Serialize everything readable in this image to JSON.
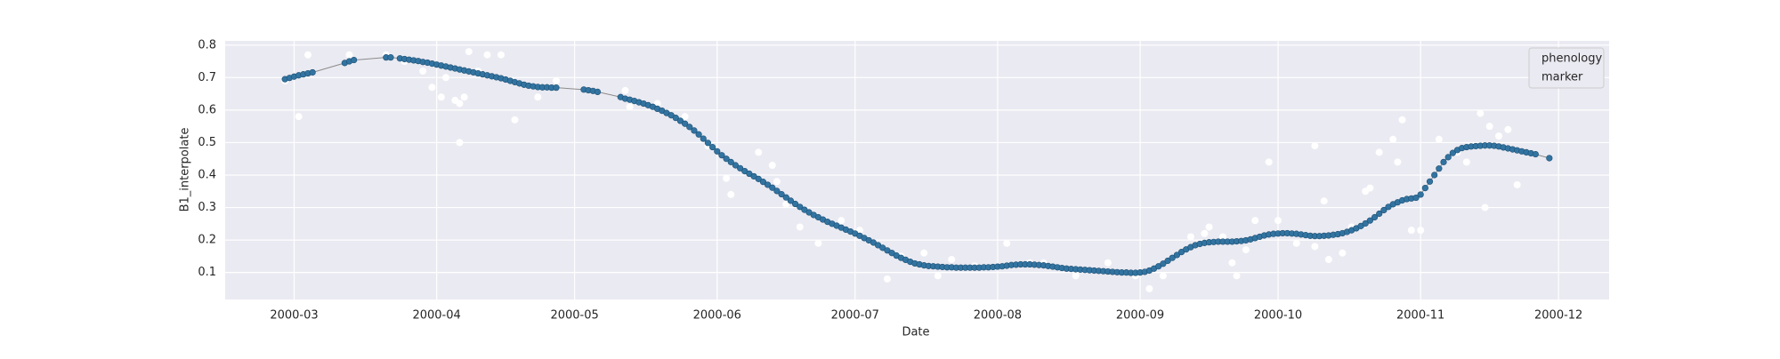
{
  "chart_data": {
    "type": "line",
    "x_label": "Date",
    "y_label": "B1_interpolate",
    "legend_title": "phenology",
    "legend": "upper right",
    "xlim": [
      45,
      346
    ],
    "ylim": [
      0.017,
      0.813
    ],
    "xticks": [
      {
        "value": 60,
        "label": "2000-03"
      },
      {
        "value": 91,
        "label": "2000-04"
      },
      {
        "value": 121,
        "label": "2000-05"
      },
      {
        "value": 152,
        "label": "2000-06"
      },
      {
        "value": 182,
        "label": "2000-07"
      },
      {
        "value": 213,
        "label": "2000-08"
      },
      {
        "value": 244,
        "label": "2000-09"
      },
      {
        "value": 274,
        "label": "2000-10"
      },
      {
        "value": 305,
        "label": "2000-11"
      },
      {
        "value": 335,
        "label": "2000-12"
      }
    ],
    "yticks": [
      0.1,
      0.2,
      0.3,
      0.4,
      0.5,
      0.6,
      0.7,
      0.8
    ],
    "grid": true,
    "series": [
      {
        "name": "marker",
        "color": "#3274a1",
        "line_color": "#8c8c8c",
        "x": [
          58,
          59,
          60,
          61,
          62,
          63,
          64,
          71,
          72,
          73,
          80,
          81,
          83,
          84,
          85,
          86,
          87,
          88,
          89,
          90,
          91,
          92,
          93,
          94,
          95,
          96,
          97,
          98,
          99,
          100,
          101,
          102,
          103,
          104,
          105,
          106,
          107,
          108,
          109,
          110,
          111,
          112,
          113,
          114,
          115,
          116,
          117,
          123,
          124,
          125,
          126,
          131,
          132,
          133,
          134,
          135,
          136,
          137,
          138,
          139,
          140,
          141,
          142,
          143,
          144,
          145,
          146,
          147,
          148,
          149,
          150,
          151,
          152,
          153,
          154,
          155,
          156,
          157,
          158,
          159,
          160,
          161,
          162,
          163,
          164,
          165,
          166,
          167,
          168,
          169,
          170,
          171,
          172,
          173,
          174,
          175,
          176,
          177,
          178,
          179,
          180,
          181,
          182,
          183,
          184,
          185,
          186,
          187,
          188,
          189,
          190,
          191,
          192,
          193,
          194,
          195,
          196,
          197,
          198,
          199,
          200,
          201,
          202,
          203,
          204,
          205,
          206,
          207,
          208,
          209,
          210,
          211,
          212,
          213,
          214,
          215,
          216,
          217,
          218,
          219,
          220,
          221,
          222,
          223,
          224,
          225,
          226,
          227,
          228,
          229,
          230,
          231,
          232,
          233,
          234,
          235,
          236,
          237,
          238,
          239,
          240,
          241,
          242,
          243,
          244,
          245,
          246,
          247,
          248,
          249,
          250,
          251,
          252,
          253,
          254,
          255,
          256,
          257,
          258,
          259,
          260,
          261,
          262,
          263,
          264,
          265,
          266,
          267,
          268,
          269,
          270,
          271,
          272,
          273,
          274,
          275,
          276,
          277,
          278,
          279,
          280,
          281,
          282,
          283,
          284,
          285,
          286,
          287,
          288,
          289,
          290,
          291,
          292,
          293,
          294,
          295,
          296,
          297,
          298,
          299,
          300,
          301,
          302,
          303,
          304,
          305,
          306,
          307,
          308,
          309,
          310,
          311,
          312,
          313,
          314,
          315,
          316,
          317,
          318,
          319,
          320,
          321,
          322,
          323,
          324,
          325,
          326,
          327,
          328,
          329,
          330,
          333
        ],
        "values": [
          0.695,
          0.699,
          0.703,
          0.707,
          0.71,
          0.713,
          0.716,
          0.745,
          0.75,
          0.754,
          0.762,
          0.762,
          0.759,
          0.757,
          0.755,
          0.753,
          0.751,
          0.748,
          0.746,
          0.743,
          0.74,
          0.737,
          0.734,
          0.731,
          0.728,
          0.725,
          0.722,
          0.719,
          0.716,
          0.713,
          0.71,
          0.707,
          0.704,
          0.701,
          0.698,
          0.694,
          0.69,
          0.686,
          0.682,
          0.678,
          0.675,
          0.673,
          0.671,
          0.67,
          0.67,
          0.669,
          0.669,
          0.663,
          0.661,
          0.659,
          0.656,
          0.64,
          0.635,
          0.632,
          0.628,
          0.624,
          0.62,
          0.615,
          0.61,
          0.604,
          0.598,
          0.591,
          0.584,
          0.576,
          0.567,
          0.558,
          0.548,
          0.537,
          0.525,
          0.512,
          0.499,
          0.486,
          0.473,
          0.461,
          0.45,
          0.44,
          0.43,
          0.421,
          0.412,
          0.404,
          0.396,
          0.388,
          0.379,
          0.37,
          0.361,
          0.351,
          0.341,
          0.331,
          0.321,
          0.311,
          0.302,
          0.293,
          0.285,
          0.277,
          0.27,
          0.263,
          0.256,
          0.25,
          0.244,
          0.238,
          0.232,
          0.226,
          0.22,
          0.213,
          0.206,
          0.199,
          0.192,
          0.184,
          0.176,
          0.168,
          0.16,
          0.152,
          0.145,
          0.139,
          0.133,
          0.128,
          0.125,
          0.122,
          0.12,
          0.119,
          0.118,
          0.117,
          0.116,
          0.116,
          0.115,
          0.115,
          0.115,
          0.115,
          0.115,
          0.115,
          0.116,
          0.116,
          0.117,
          0.118,
          0.119,
          0.121,
          0.123,
          0.124,
          0.125,
          0.125,
          0.125,
          0.124,
          0.123,
          0.122,
          0.12,
          0.118,
          0.116,
          0.114,
          0.112,
          0.111,
          0.11,
          0.109,
          0.108,
          0.107,
          0.106,
          0.105,
          0.104,
          0.103,
          0.102,
          0.101,
          0.1,
          0.1,
          0.099,
          0.099,
          0.1,
          0.102,
          0.106,
          0.112,
          0.119,
          0.127,
          0.136,
          0.145,
          0.154,
          0.163,
          0.171,
          0.178,
          0.184,
          0.188,
          0.191,
          0.193,
          0.194,
          0.195,
          0.195,
          0.195,
          0.195,
          0.196,
          0.197,
          0.199,
          0.202,
          0.206,
          0.21,
          0.214,
          0.217,
          0.219,
          0.22,
          0.221,
          0.221,
          0.22,
          0.219,
          0.217,
          0.215,
          0.213,
          0.212,
          0.212,
          0.213,
          0.214,
          0.216,
          0.218,
          0.221,
          0.225,
          0.23,
          0.236,
          0.243,
          0.251,
          0.26,
          0.27,
          0.281,
          0.292,
          0.302,
          0.31,
          0.316,
          0.322,
          0.326,
          0.328,
          0.33,
          0.34,
          0.36,
          0.38,
          0.4,
          0.42,
          0.44,
          0.455,
          0.468,
          0.477,
          0.483,
          0.486,
          0.488,
          0.489,
          0.49,
          0.491,
          0.491,
          0.49,
          0.488,
          0.485,
          0.482,
          0.479,
          0.476,
          0.473,
          0.47,
          0.467,
          0.464,
          0.452
        ]
      },
      {
        "color": "#ffffff",
        "x": [
          58,
          61,
          63,
          72,
          80,
          84,
          88,
          90,
          92,
          93,
          95,
          96,
          96,
          97,
          98,
          100,
          102,
          105,
          108,
          113,
          117,
          132,
          133,
          139,
          145,
          150,
          154,
          155,
          161,
          164,
          165,
          167,
          170,
          174,
          179,
          183,
          186,
          189,
          192,
          197,
          200,
          203,
          208,
          215,
          220,
          223,
          230,
          237,
          243,
          246,
          249,
          255,
          258,
          259,
          262,
          264,
          265,
          267,
          269,
          272,
          274,
          278,
          282,
          282,
          284,
          285,
          288,
          290,
          293,
          294,
          296,
          299,
          300,
          301,
          303,
          305,
          309,
          313,
          315,
          316,
          318,
          319,
          320,
          322,
          324,
          326
        ],
        "values": [
          0.69,
          0.58,
          0.77,
          0.77,
          0.77,
          0.75,
          0.72,
          0.67,
          0.64,
          0.7,
          0.63,
          0.62,
          0.5,
          0.64,
          0.78,
          0.72,
          0.77,
          0.77,
          0.57,
          0.64,
          0.69,
          0.66,
          0.61,
          0.62,
          0.58,
          0.49,
          0.39,
          0.34,
          0.47,
          0.43,
          0.38,
          0.31,
          0.24,
          0.19,
          0.26,
          0.23,
          0.19,
          0.08,
          0.15,
          0.16,
          0.09,
          0.14,
          0.12,
          0.19,
          0.13,
          0.13,
          0.09,
          0.13,
          0.09,
          0.05,
          0.09,
          0.21,
          0.22,
          0.24,
          0.21,
          0.13,
          0.09,
          0.17,
          0.26,
          0.44,
          0.26,
          0.19,
          0.18,
          0.49,
          0.32,
          0.14,
          0.16,
          0.24,
          0.35,
          0.36,
          0.47,
          0.51,
          0.44,
          0.57,
          0.23,
          0.23,
          0.51,
          0.47,
          0.44,
          0.49,
          0.59,
          0.3,
          0.55,
          0.52,
          0.54,
          0.37
        ]
      }
    ]
  }
}
